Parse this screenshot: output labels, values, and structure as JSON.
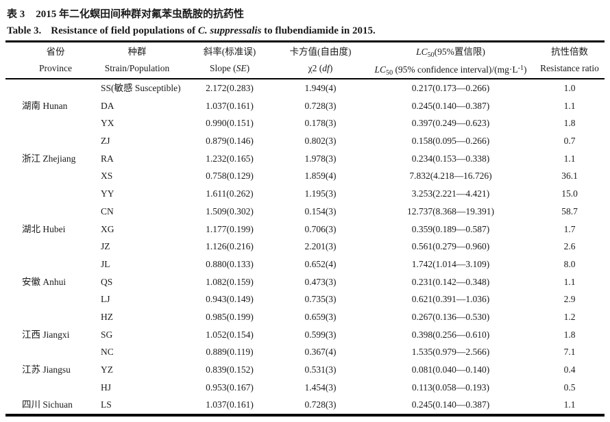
{
  "colors": {
    "text": "#1a1a1a",
    "rule": "#000000"
  },
  "title_cn": {
    "label": "表 3",
    "text": "2015 年二化螟田间种群对氟苯虫酰胺的抗药性"
  },
  "title_en": {
    "label": "Table 3.",
    "part1": "Resistance of field populations of ",
    "species": "C. suppressalis",
    "part2": " to flubendiamide in 2015."
  },
  "columns": {
    "province": {
      "cn": "省份",
      "en": "Province"
    },
    "strain": {
      "cn": "种群",
      "en": "Strain/Population"
    },
    "slope": {
      "cn": "斜率(标准误)",
      "en_pre": "Slope (",
      "en_it": "SE",
      "en_post": ")"
    },
    "chi": {
      "cn": "卡方值(自由度)",
      "en_pre": "χ2 (",
      "en_it": "df",
      "en_post": ")"
    },
    "lc50": {
      "it": "LC",
      "sub": "50",
      "cn_rest": "(95%置信限)",
      "en_mid": " (95% confidence interval)/(mg·L",
      "sup": "-1",
      "en_close": ")"
    },
    "rr": {
      "cn": "抗性倍数",
      "en": "Resistance ratio"
    }
  },
  "rows": [
    {
      "province": "",
      "strain": "SS(敏感 Susceptible)",
      "slope": "2.172(0.283)",
      "chi": "1.949(4)",
      "lc50": "0.217(0.173—0.266)",
      "rr": "1.0"
    },
    {
      "province": "湖南 Hunan",
      "strain": "DA",
      "slope": "1.037(0.161)",
      "chi": "0.728(3)",
      "lc50": "0.245(0.140—0.387)",
      "rr": "1.1"
    },
    {
      "province": "",
      "strain": "YX",
      "slope": "0.990(0.151)",
      "chi": "0.178(3)",
      "lc50": "0.397(0.249—0.623)",
      "rr": "1.8"
    },
    {
      "province": "",
      "strain": "ZJ",
      "slope": "0.879(0.146)",
      "chi": "0.802(3)",
      "lc50": "0.158(0.095—0.266)",
      "rr": "0.7"
    },
    {
      "province": "浙江 Zhejiang",
      "strain": "RA",
      "slope": "1.232(0.165)",
      "chi": "1.978(3)",
      "lc50": "0.234(0.153—0.338)",
      "rr": "1.1"
    },
    {
      "province": "",
      "strain": "XS",
      "slope": "0.758(0.129)",
      "chi": "1.859(4)",
      "lc50": "7.832(4.218—16.726)",
      "rr": "36.1"
    },
    {
      "province": "",
      "strain": "YY",
      "slope": "1.611(0.262)",
      "chi": "1.195(3)",
      "lc50": "3.253(2.221—4.421)",
      "rr": "15.0"
    },
    {
      "province": "",
      "strain": "CN",
      "slope": "1.509(0.302)",
      "chi": "0.154(3)",
      "lc50": "12.737(8.368—19.391)",
      "rr": "58.7"
    },
    {
      "province": "湖北 Hubei",
      "strain": "XG",
      "slope": "1.177(0.199)",
      "chi": "0.706(3)",
      "lc50": "0.359(0.189—0.587)",
      "rr": "1.7"
    },
    {
      "province": "",
      "strain": "JZ",
      "slope": "1.126(0.216)",
      "chi": "2.201(3)",
      "lc50": "0.561(0.279—0.960)",
      "rr": "2.6"
    },
    {
      "province": "",
      "strain": "JL",
      "slope": "0.880(0.133)",
      "chi": "0.652(4)",
      "lc50": "1.742(1.014—3.109)",
      "rr": "8.0"
    },
    {
      "province": "安徽 Anhui",
      "strain": "QS",
      "slope": "1.082(0.159)",
      "chi": "0.473(3)",
      "lc50": "0.231(0.142—0.348)",
      "rr": "1.1"
    },
    {
      "province": "",
      "strain": "LJ",
      "slope": "0.943(0.149)",
      "chi": "0.735(3)",
      "lc50": "0.621(0.391—1.036)",
      "rr": "2.9"
    },
    {
      "province": "",
      "strain": "HZ",
      "slope": "0.985(0.199)",
      "chi": "0.659(3)",
      "lc50": "0.267(0.136—0.530)",
      "rr": "1.2"
    },
    {
      "province": "江西 Jiangxi",
      "strain": "SG",
      "slope": "1.052(0.154)",
      "chi": "0.599(3)",
      "lc50": "0.398(0.256—0.610)",
      "rr": "1.8"
    },
    {
      "province": "",
      "strain": "NC",
      "slope": "0.889(0.119)",
      "chi": "0.367(4)",
      "lc50": "1.535(0.979—2.566)",
      "rr": "7.1"
    },
    {
      "province": "江苏 Jiangsu",
      "strain": "YZ",
      "slope": "0.839(0.152)",
      "chi": "0.531(3)",
      "lc50": "0.081(0.040—0.140)",
      "rr": "0.4"
    },
    {
      "province": "",
      "strain": "HJ",
      "slope": "0.953(0.167)",
      "chi": "1.454(3)",
      "lc50": "0.113(0.058—0.193)",
      "rr": "0.5"
    },
    {
      "province": "四川 Sichuan",
      "strain": "LS",
      "slope": "1.037(0.161)",
      "chi": "0.728(3)",
      "lc50": "0.245(0.140—0.387)",
      "rr": "1.1"
    }
  ]
}
